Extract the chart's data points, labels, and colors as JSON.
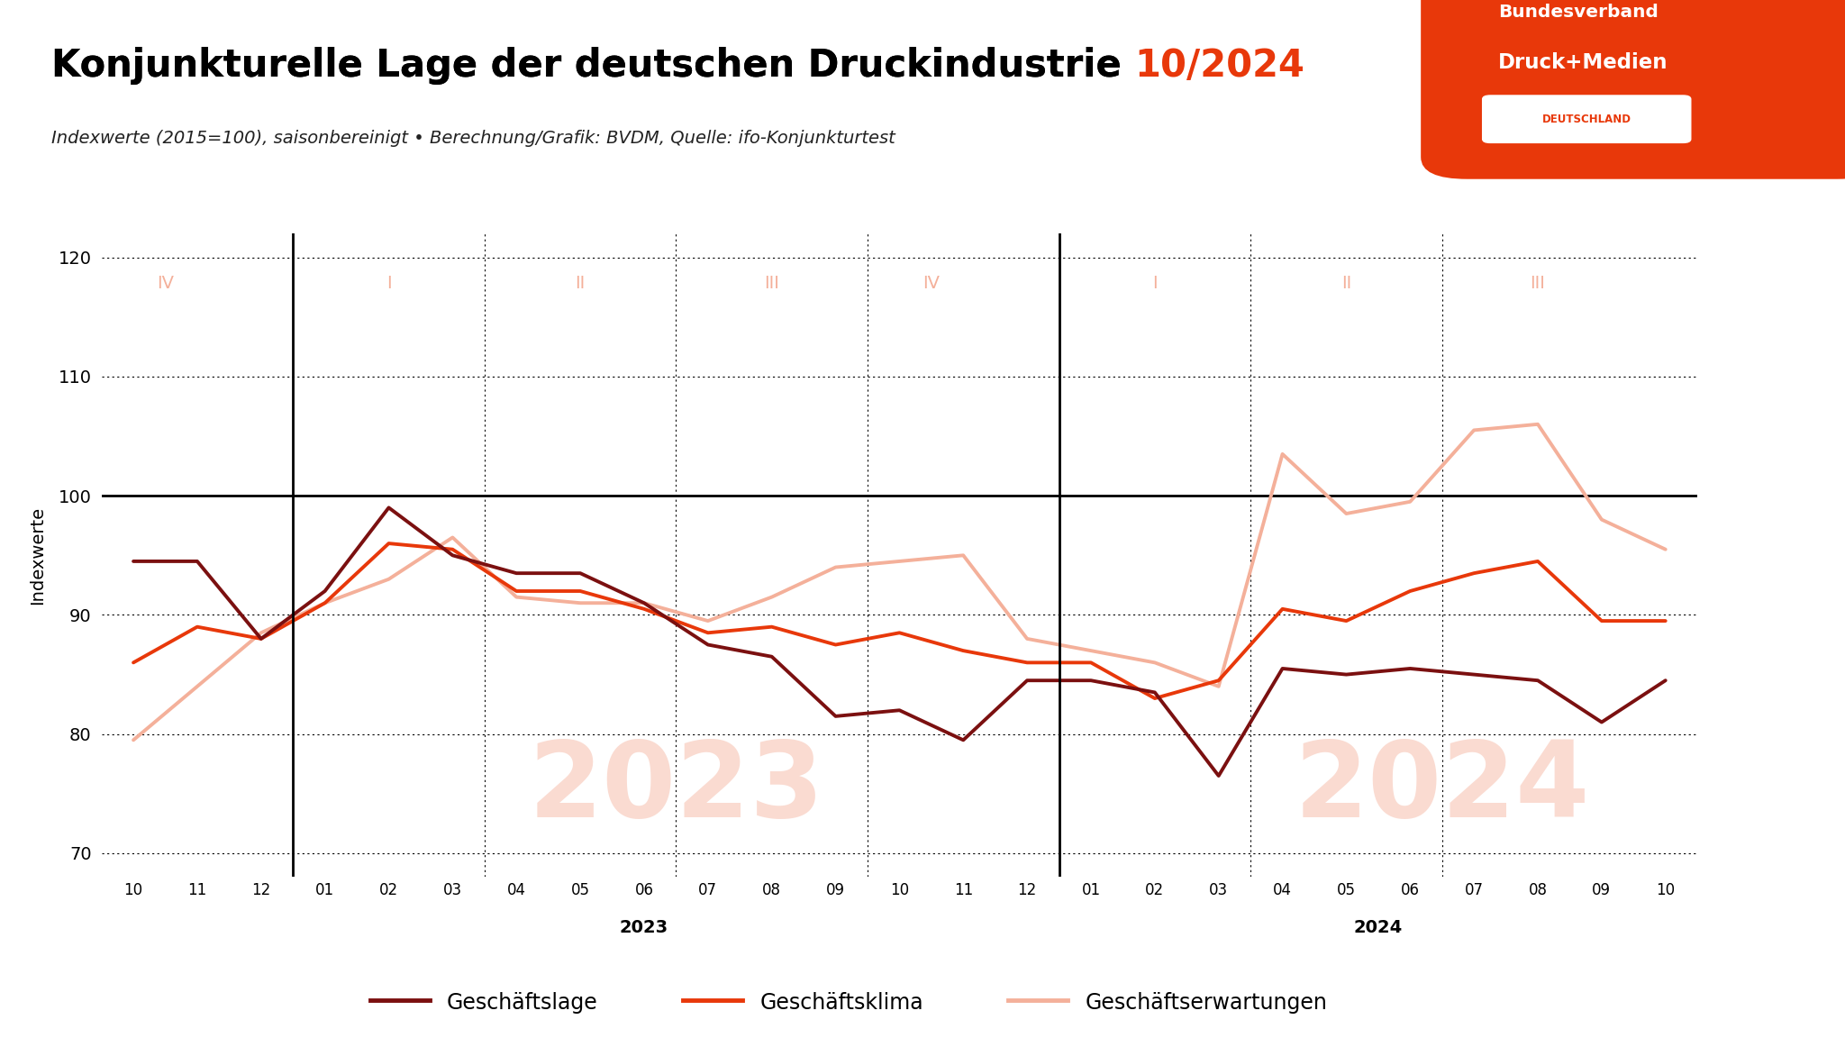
{
  "title_black": "Konjunkturelle Lage der deutschen Druckindustrie ",
  "title_red": "10/2024",
  "subtitle": "Indexwerte (2015=100), saisonbereinigt • Berechnung/Grafik: BVDM, Quelle: ifo-Konjunkturtest",
  "ylabel": "Indexwerte",
  "xlabels": [
    "10",
    "11",
    "12",
    "01",
    "02",
    "03",
    "04",
    "05",
    "06",
    "07",
    "08",
    "09",
    "10",
    "11",
    "12",
    "01",
    "02",
    "03",
    "04",
    "05",
    "06",
    "07",
    "08",
    "09",
    "10"
  ],
  "year_labels": [
    {
      "text": "2023",
      "x": 8.5
    },
    {
      "text": "2024",
      "x": 20
    }
  ],
  "year_dividers_idx": [
    3,
    15
  ],
  "quarter_labels": [
    {
      "text": "IV",
      "xi": 1.0
    },
    {
      "text": "I",
      "xi": 4.5
    },
    {
      "text": "II",
      "xi": 7.5
    },
    {
      "text": "III",
      "xi": 10.5
    },
    {
      "text": "IV",
      "xi": 13.0
    },
    {
      "text": "I",
      "xi": 16.5
    },
    {
      "text": "II",
      "xi": 19.5
    },
    {
      "text": "III",
      "xi": 22.5
    }
  ],
  "quarter_dividers_idx": [
    3,
    6,
    9,
    12,
    15,
    18,
    21
  ],
  "watermark_2023": {
    "text": "2023",
    "xi": 9.0,
    "y": 75.5
  },
  "watermark_2024": {
    "text": "2024",
    "xi": 21.0,
    "y": 75.5
  },
  "ylim": [
    68,
    122
  ],
  "yticks": [
    70,
    80,
    90,
    100,
    110,
    120
  ],
  "geschaeftslage": [
    94.5,
    94.5,
    88.0,
    92.0,
    99.0,
    95.0,
    93.5,
    93.5,
    91.0,
    87.5,
    86.5,
    81.5,
    82.0,
    79.5,
    84.5,
    84.5,
    83.5,
    76.5,
    85.5,
    85.0,
    85.5,
    85.0,
    84.5,
    81.0,
    84.5
  ],
  "geschaeftsklima": [
    86.0,
    89.0,
    88.0,
    91.0,
    96.0,
    95.5,
    92.0,
    92.0,
    90.5,
    88.5,
    89.0,
    87.5,
    88.5,
    87.0,
    86.0,
    86.0,
    83.0,
    84.5,
    90.5,
    89.5,
    92.0,
    93.5,
    94.5,
    89.5,
    89.5
  ],
  "geschaeftserwartungen": [
    79.5,
    84.0,
    88.5,
    91.0,
    93.0,
    96.5,
    91.5,
    91.0,
    91.0,
    89.5,
    91.5,
    94.0,
    94.5,
    95.0,
    88.0,
    87.0,
    86.0,
    84.0,
    103.5,
    98.5,
    99.5,
    105.5,
    106.0,
    98.0,
    95.5
  ],
  "color_lage": "#7B1010",
  "color_klima": "#E8380A",
  "color_erwartungen": "#F4B09A",
  "color_red": "#E8380A",
  "bg_color": "#FFFFFF",
  "logo_bg": "#E8380A",
  "title_fontsize": 30,
  "subtitle_fontsize": 14,
  "legend_fontsize": 17
}
